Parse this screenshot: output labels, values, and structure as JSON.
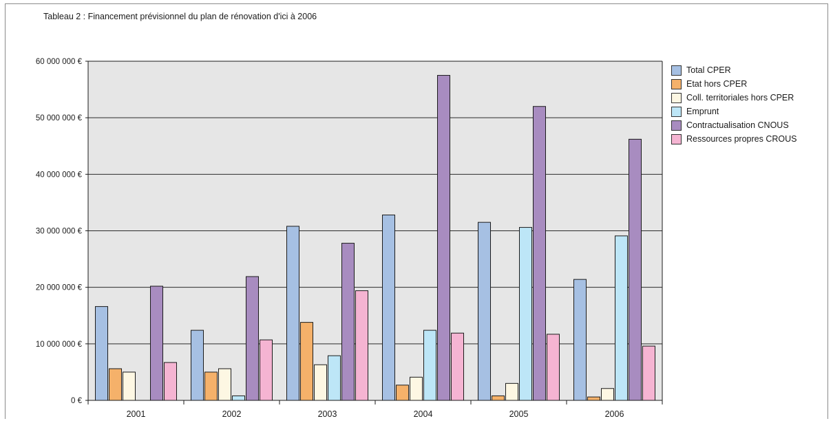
{
  "title": "Tableau 2 : Financement prévisionnel du plan de rénovation d'ici à 2006",
  "chart_data": {
    "type": "bar",
    "title": "Tableau 2 : Financement prévisionnel du plan de rénovation d'ici à 2006",
    "categories": [
      "2001",
      "2002",
      "2003",
      "2004",
      "2005",
      "2006"
    ],
    "ylim": [
      0,
      60000000
    ],
    "yticks": [
      0,
      10000000,
      20000000,
      30000000,
      40000000,
      50000000,
      60000000
    ],
    "ytick_labels": [
      "0 €",
      "10 000 000 €",
      "20 000 000 €",
      "30 000 000 €",
      "40 000 000 €",
      "50 000 000 €",
      "60 000 000 €"
    ],
    "grid": true,
    "legend_position": "right",
    "series": [
      {
        "name": "Total CPER",
        "color": "#a6c0e3",
        "values": [
          16600000,
          12400000,
          30800000,
          32800000,
          31500000,
          21400000
        ]
      },
      {
        "name": "Etat hors CPER",
        "color": "#f5b16a",
        "values": [
          5600000,
          5000000,
          13800000,
          2700000,
          800000,
          600000
        ]
      },
      {
        "name": "Coll. territoriales hors CPER",
        "color": "#fdf7e3",
        "values": [
          5000000,
          5600000,
          6300000,
          4100000,
          3000000,
          2100000
        ]
      },
      {
        "name": "Emprunt",
        "color": "#bde6f7",
        "values": [
          0,
          800000,
          7900000,
          12400000,
          30600000,
          29100000
        ]
      },
      {
        "name": "Contractualisation CNOUS",
        "color": "#a88cc0",
        "values": [
          20200000,
          21900000,
          27800000,
          57500000,
          52000000,
          46200000
        ]
      },
      {
        "name": "Ressources propres CROUS",
        "color": "#f5b4d2",
        "values": [
          6700000,
          10700000,
          19400000,
          11900000,
          11700000,
          9600000
        ]
      }
    ]
  }
}
